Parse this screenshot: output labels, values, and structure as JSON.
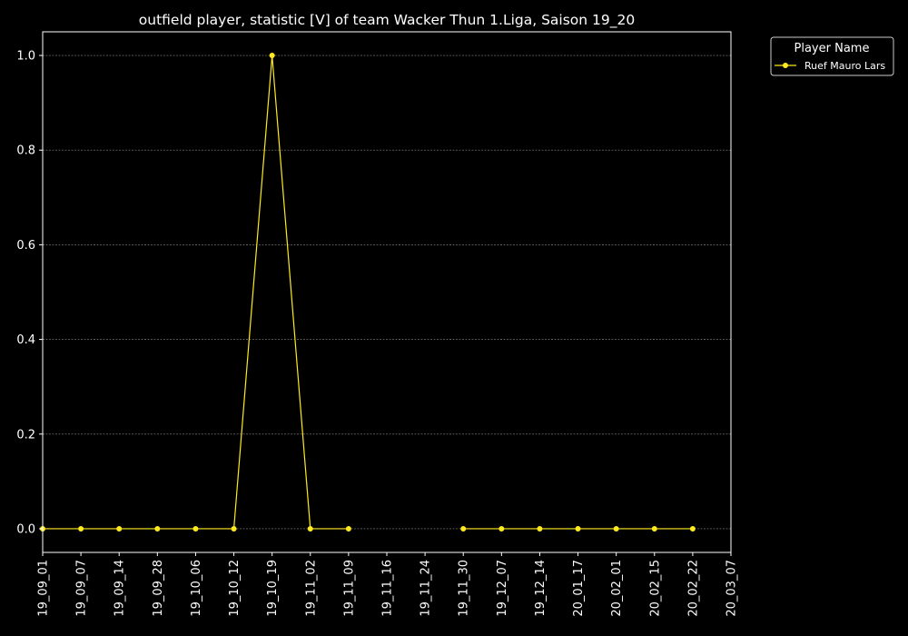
{
  "chart_data": {
    "type": "line",
    "title": "outfield player, statistic [V] of team Wacker Thun 1.Liga, Saison 19_20",
    "xlabel": "",
    "ylabel": "",
    "categories": [
      "19_09_01",
      "19_09_07",
      "19_09_14",
      "19_09_28",
      "19_10_06",
      "19_10_12",
      "19_10_19",
      "19_11_02",
      "19_11_09",
      "19_11_16",
      "19_11_24",
      "19_11_30",
      "19_12_07",
      "19_12_14",
      "20_01_17",
      "20_02_01",
      "20_02_15",
      "20_02_22",
      "20_03_07"
    ],
    "ylim": [
      -0.05,
      1.05
    ],
    "yticks": [
      "0.0",
      "0.2",
      "0.4",
      "0.6",
      "0.8",
      "1.0"
    ],
    "grid": true,
    "legend_title": "Player Name",
    "legend_position": "top-right outside",
    "series": [
      {
        "name": "Ruef Mauro Lars",
        "color": "#ffea1f",
        "values": [
          0,
          0,
          0,
          0,
          0,
          0,
          1,
          0,
          0,
          null,
          null,
          0,
          0,
          0,
          0,
          0,
          0,
          0,
          null
        ]
      }
    ]
  },
  "colors": {
    "background": "#000000",
    "axes": "#ffffff",
    "grid": "#888888",
    "series": "#ffea1f"
  }
}
